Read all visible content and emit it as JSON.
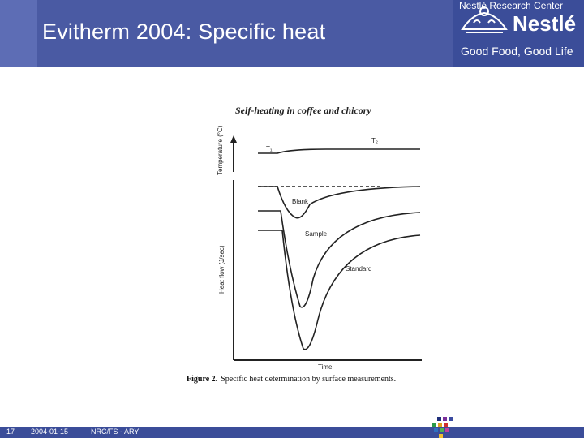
{
  "header": {
    "title": "Evitherm 2004: Specific heat",
    "brand": "Nestlé",
    "tagline": "Good Food, Good Life",
    "logo_icon": "nest-logo-icon"
  },
  "figure": {
    "heading": "Self-heating in coffee and chicory",
    "y_label_top": "Temperature (°C)",
    "y_label_bottom": "Heat flow (J/sec)",
    "x_label": "Time",
    "t1": "T₁",
    "t2": "T₂",
    "curve_blank": "Blank",
    "curve_sample": "Sample",
    "curve_standard": "Standard",
    "caption_bold": "Figure 2.",
    "caption_text": "Specific heat determination by surface measurements."
  },
  "footer": {
    "page": "17",
    "date": "2004-01-15",
    "dept": "NRC/FS - ARY",
    "center": "Nestlé Research Center"
  },
  "colors": {
    "header_bg": "#4a5aa3",
    "footer_bg": "#3b4d99"
  }
}
